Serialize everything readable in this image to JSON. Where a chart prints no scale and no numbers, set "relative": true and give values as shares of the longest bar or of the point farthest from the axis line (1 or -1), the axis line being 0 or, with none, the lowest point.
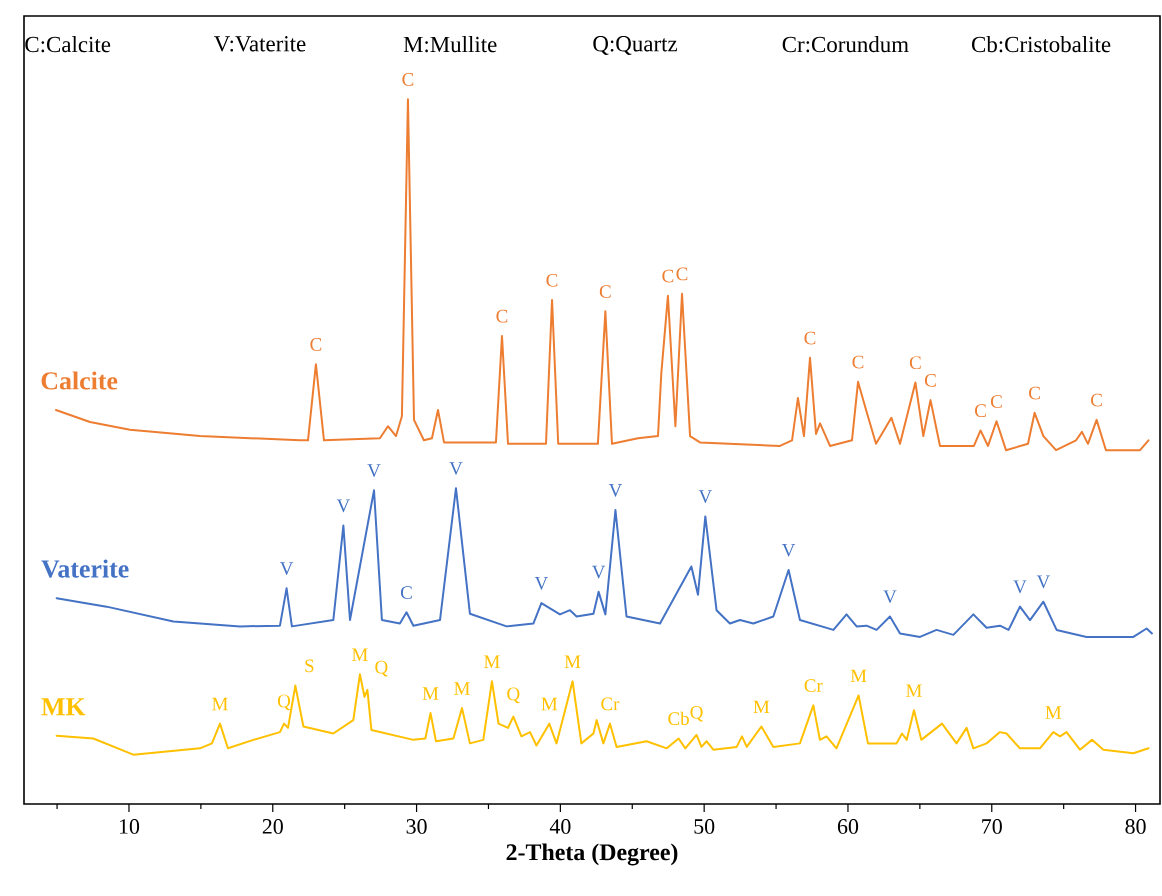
{
  "chart_data": {
    "type": "line",
    "relative": true,
    "xlabel": "2-Theta (Degree)",
    "xlim": [
      2.7,
      81.7
    ],
    "xticks": [
      {
        "value": 5,
        "label": null
      },
      10,
      {
        "value": 15,
        "label": null
      },
      20,
      {
        "value": 25,
        "label": null
      },
      30,
      {
        "value": 35,
        "label": null
      },
      40,
      {
        "value": 45,
        "label": null
      },
      50,
      {
        "value": 55,
        "label": null
      },
      60,
      {
        "value": 65,
        "label": null
      },
      70,
      {
        "value": 75,
        "label": null
      },
      80
    ],
    "tick_labels": "x",
    "grid": false,
    "legend": false,
    "marker": "none",
    "line_style": "solid",
    "series": [
      {
        "name": "Calcite",
        "color": "#ed7d31",
        "x": [
          4.92,
          7.29,
          10.07,
          14.94,
          21.89,
          22.45,
          23.0,
          23.56,
          27.45,
          28.01,
          28.57,
          28.98,
          29.4,
          29.82,
          30.51,
          31.07,
          31.49,
          31.91,
          35.52,
          35.94,
          36.36,
          39.0,
          39.42,
          39.85,
          42.61,
          43.13,
          43.59,
          45.4,
          46.79,
          47.02,
          47.48,
          48.0,
          48.46,
          49.02,
          49.71,
          55.27,
          56.11,
          56.52,
          56.94,
          57.36,
          57.78,
          58.06,
          58.75,
          60.28,
          60.7,
          61.26,
          61.95,
          63.02,
          63.62,
          64.69,
          65.24,
          65.74,
          66.4,
          68.76,
          69.22,
          69.74,
          70.33,
          70.99,
          72.52,
          72.98,
          73.59,
          74.47,
          75.86,
          76.27,
          76.69,
          77.29,
          77.94,
          80.31,
          80.9
        ],
        "values": [
          0.559,
          0.542,
          0.531,
          0.522,
          0.516,
          0.516,
          0.624,
          0.516,
          0.519,
          0.536,
          0.522,
          0.55,
          1.0,
          0.545,
          0.516,
          0.519,
          0.559,
          0.513,
          0.513,
          0.664,
          0.511,
          0.511,
          0.715,
          0.511,
          0.511,
          0.699,
          0.511,
          0.519,
          0.522,
          0.611,
          0.721,
          0.536,
          0.724,
          0.522,
          0.513,
          0.508,
          0.516,
          0.576,
          0.522,
          0.633,
          0.525,
          0.54,
          0.508,
          0.516,
          0.599,
          0.559,
          0.511,
          0.548,
          0.511,
          0.598,
          0.522,
          0.573,
          0.508,
          0.508,
          0.53,
          0.508,
          0.543,
          0.502,
          0.511,
          0.555,
          0.522,
          0.502,
          0.516,
          0.528,
          0.511,
          0.545,
          0.502,
          0.502,
          0.516
        ]
      },
      {
        "name": "Vaterite",
        "color": "#4472c4",
        "x": [
          4.97,
          8.44,
          13.09,
          17.72,
          20.5,
          20.96,
          21.33,
          24.21,
          24.91,
          25.37,
          27.04,
          27.59,
          28.84,
          29.3,
          29.78,
          31.63,
          32.74,
          33.71,
          36.26,
          38.12,
          38.68,
          39.97,
          40.67,
          41.13,
          42.3,
          42.66,
          43.13,
          43.83,
          44.6,
          46.93,
          49.11,
          49.57,
          50.08,
          50.86,
          51.79,
          52.49,
          53.42,
          54.81,
          55.87,
          56.66,
          58.99,
          59.9,
          60.6,
          61.29,
          61.99,
          62.92,
          63.62,
          65.01,
          66.16,
          67.33,
          68.72,
          69.64,
          70.57,
          71.17,
          71.96,
          72.66,
          73.59,
          74.51,
          76.59,
          79.85,
          80.77,
          81.14
        ],
        "values": [
          0.292,
          0.28,
          0.259,
          0.252,
          0.253,
          0.306,
          0.252,
          0.261,
          0.395,
          0.261,
          0.445,
          0.261,
          0.256,
          0.272,
          0.253,
          0.261,
          0.448,
          0.27,
          0.252,
          0.256,
          0.285,
          0.269,
          0.275,
          0.266,
          0.27,
          0.301,
          0.269,
          0.417,
          0.266,
          0.256,
          0.337,
          0.297,
          0.408,
          0.275,
          0.256,
          0.261,
          0.256,
          0.266,
          0.332,
          0.261,
          0.247,
          0.269,
          0.252,
          0.253,
          0.247,
          0.266,
          0.242,
          0.237,
          0.247,
          0.24,
          0.269,
          0.25,
          0.253,
          0.247,
          0.28,
          0.261,
          0.287,
          0.247,
          0.237,
          0.237,
          0.249,
          0.242
        ]
      },
      {
        "name": "MK",
        "color": "#ffc000",
        "x": [
          4.97,
          7.52,
          10.3,
          14.94,
          15.77,
          16.33,
          16.88,
          18.65,
          20.5,
          20.78,
          21.06,
          21.57,
          22.13,
          24.21,
          25.6,
          26.06,
          26.38,
          26.58,
          26.86,
          29.78,
          30.61,
          30.97,
          31.35,
          32.56,
          33.16,
          33.71,
          34.64,
          35.24,
          35.7,
          36.36,
          36.73,
          37.29,
          37.89,
          38.34,
          39.23,
          39.73,
          40.85,
          41.46,
          42.3,
          42.52,
          42.99,
          43.45,
          43.91,
          46.0,
          47.4,
          48.22,
          48.69,
          49.47,
          49.81,
          50.17,
          50.64,
          52.26,
          52.63,
          52.96,
          53.98,
          54.81,
          56.66,
          57.59,
          58.05,
          58.51,
          59.2,
          60.74,
          61.39,
          63.38,
          63.76,
          64.09,
          64.59,
          65.1,
          66.54,
          67.55,
          68.25,
          68.72,
          69.64,
          70.57,
          71.03,
          71.96,
          73.35,
          74.28,
          74.74,
          75.2,
          76.13,
          76.97,
          77.76,
          79.85,
          80.9
        ],
        "values": [
          0.097,
          0.093,
          0.07,
          0.079,
          0.086,
          0.114,
          0.079,
          0.091,
          0.102,
          0.114,
          0.108,
          0.168,
          0.11,
          0.1,
          0.119,
          0.184,
          0.152,
          0.162,
          0.105,
          0.091,
          0.093,
          0.129,
          0.089,
          0.093,
          0.136,
          0.086,
          0.091,
          0.174,
          0.114,
          0.108,
          0.124,
          0.096,
          0.102,
          0.083,
          0.114,
          0.086,
          0.174,
          0.086,
          0.1,
          0.119,
          0.086,
          0.114,
          0.081,
          0.089,
          0.079,
          0.093,
          0.079,
          0.098,
          0.081,
          0.089,
          0.077,
          0.081,
          0.096,
          0.081,
          0.11,
          0.081,
          0.086,
          0.14,
          0.091,
          0.096,
          0.079,
          0.154,
          0.086,
          0.086,
          0.1,
          0.091,
          0.133,
          0.091,
          0.114,
          0.086,
          0.108,
          0.079,
          0.086,
          0.102,
          0.1,
          0.079,
          0.079,
          0.102,
          0.096,
          0.102,
          0.077,
          0.091,
          0.077,
          0.072,
          0.079
        ]
      }
    ],
    "annotations": [
      "C:Calcite",
      "V:Vaterite",
      "M:Mullite",
      "Q:Quartz",
      "Cr:Corundum",
      "Cb:Cristobalite",
      {
        "text": "C",
        "x": 23.0,
        "y": 0.624
      },
      {
        "text": "C",
        "x": 29.4,
        "y": 1.0
      },
      {
        "text": "C",
        "x": 35.94,
        "y": 0.664
      },
      {
        "text": "C",
        "x": 39.42,
        "y": 0.715
      },
      {
        "text": "C",
        "x": 43.13,
        "y": 0.699
      },
      {
        "text": "C",
        "x": 47.48,
        "y": 0.721
      },
      {
        "text": "C",
        "x": 48.46,
        "y": 0.724
      },
      {
        "text": "C",
        "x": 57.36,
        "y": 0.633
      },
      {
        "text": "C",
        "x": 60.7,
        "y": 0.599
      },
      {
        "text": "C",
        "x": 64.69,
        "y": 0.598
      },
      {
        "text": "C",
        "x": 65.74,
        "y": 0.573
      },
      {
        "text": "C",
        "x": 69.22,
        "y": 0.53
      },
      {
        "text": "C",
        "x": 70.33,
        "y": 0.543
      },
      {
        "text": "C",
        "x": 72.98,
        "y": 0.555
      },
      {
        "text": "C",
        "x": 77.29,
        "y": 0.545
      },
      {
        "text": "V",
        "x": 20.96,
        "y": 0.306
      },
      {
        "text": "V",
        "x": 24.91,
        "y": 0.395
      },
      {
        "text": "V",
        "x": 27.04,
        "y": 0.445
      },
      {
        "text": "C",
        "x": 29.3,
        "y": 0.272
      },
      {
        "text": "V",
        "x": 32.74,
        "y": 0.448
      },
      {
        "text": "V",
        "x": 38.68,
        "y": 0.285
      },
      {
        "text": "V",
        "x": 42.66,
        "y": 0.301
      },
      {
        "text": "V",
        "x": 43.83,
        "y": 0.417
      },
      {
        "text": "V",
        "x": 50.08,
        "y": 0.408
      },
      {
        "text": "V",
        "x": 55.87,
        "y": 0.332
      },
      {
        "text": "V",
        "x": 62.92,
        "y": 0.266
      },
      {
        "text": "V",
        "x": 71.96,
        "y": 0.28
      },
      {
        "text": "V",
        "x": 73.59,
        "y": 0.287
      },
      {
        "text": "M",
        "x": 16.33,
        "y": 0.114
      },
      {
        "text": "Q",
        "x": 20.78,
        "y": 0.114
      },
      {
        "text": "S",
        "x": 21.57,
        "y": 0.168
      },
      {
        "text": "M",
        "x": 26.06,
        "y": 0.184
      },
      {
        "text": "Q",
        "x": 26.58,
        "y": 0.162
      },
      {
        "text": "M",
        "x": 30.97,
        "y": 0.129
      },
      {
        "text": "M",
        "x": 33.16,
        "y": 0.136
      },
      {
        "text": "M",
        "x": 35.24,
        "y": 0.174
      },
      {
        "text": "Q",
        "x": 36.73,
        "y": 0.124
      },
      {
        "text": "M",
        "x": 39.23,
        "y": 0.114
      },
      {
        "text": "M",
        "x": 40.85,
        "y": 0.174
      },
      {
        "text": "Cr",
        "x": 43.45,
        "y": 0.114
      },
      {
        "text": "Cb",
        "x": 48.22,
        "y": 0.093
      },
      {
        "text": "Q",
        "x": 49.47,
        "y": 0.098
      },
      {
        "text": "M",
        "x": 53.98,
        "y": 0.11
      },
      {
        "text": "Cr",
        "x": 57.59,
        "y": 0.14
      },
      {
        "text": "M",
        "x": 60.74,
        "y": 0.154
      },
      {
        "text": "M",
        "x": 64.59,
        "y": 0.133
      },
      {
        "text": "M",
        "x": 74.28,
        "y": 0.102
      }
    ]
  }
}
